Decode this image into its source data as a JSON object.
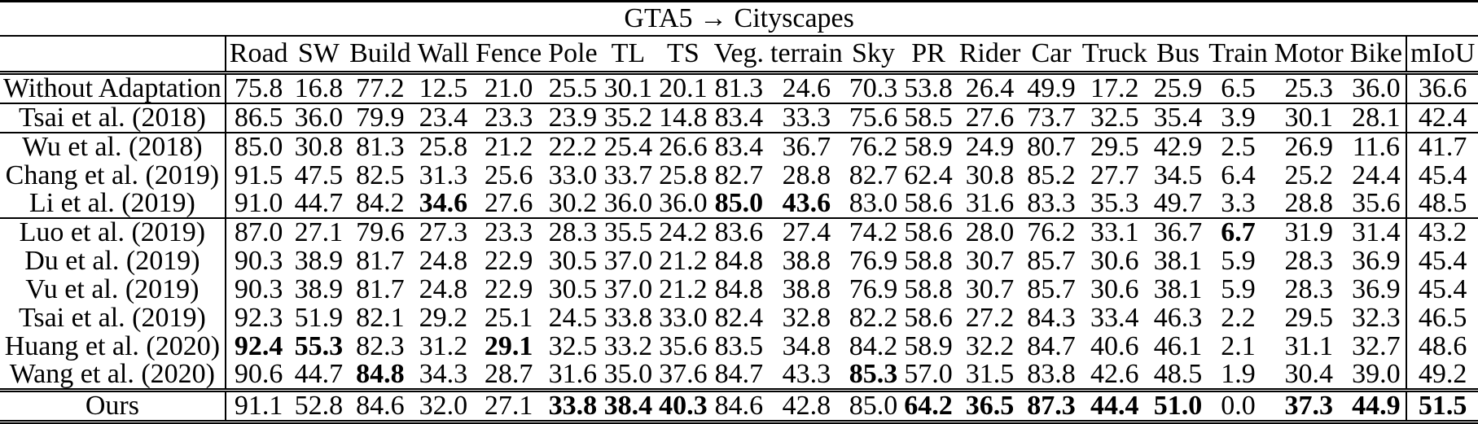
{
  "title": "GTA5 → Cityscapes",
  "columns": [
    "Road",
    "SW",
    "Build",
    "Wall",
    "Fence",
    "Pole",
    "TL",
    "TS",
    "Veg.",
    "terrain",
    "Sky",
    "PR",
    "Rider",
    "Car",
    "Truck",
    "Bus",
    "Train",
    "Motor",
    "Bike",
    "mIoU"
  ],
  "chart_data": {
    "type": "table",
    "title": "GTA5 → Cityscapes",
    "columns": [
      "Road",
      "SW",
      "Build",
      "Wall",
      "Fence",
      "Pole",
      "TL",
      "TS",
      "Veg.",
      "terrain",
      "Sky",
      "PR",
      "Rider",
      "Car",
      "Truck",
      "Bus",
      "Train",
      "Motor",
      "Bike",
      "mIoU"
    ]
  },
  "rows": [
    {
      "method": "Without Adaptation",
      "rule": "none",
      "last": false,
      "bold": [],
      "values": [
        "75.8",
        "16.8",
        "77.2",
        "12.5",
        "21.0",
        "25.5",
        "30.1",
        "20.1",
        "81.3",
        "24.6",
        "70.3",
        "53.8",
        "26.4",
        "49.9",
        "17.2",
        "25.9",
        "6.5",
        "25.3",
        "36.0",
        "36.6"
      ]
    },
    {
      "method": "Tsai et al. (2018)",
      "rule": "single",
      "last": false,
      "bold": [],
      "values": [
        "86.5",
        "36.0",
        "79.9",
        "23.4",
        "23.3",
        "23.9",
        "35.2",
        "14.8",
        "83.4",
        "33.3",
        "75.6",
        "58.5",
        "27.6",
        "73.7",
        "32.5",
        "35.4",
        "3.9",
        "30.1",
        "28.1",
        "42.4"
      ]
    },
    {
      "method": "Wu et al. (2018)",
      "rule": "single",
      "last": false,
      "bold": [],
      "values": [
        "85.0",
        "30.8",
        "81.3",
        "25.8",
        "21.2",
        "22.2",
        "25.4",
        "26.6",
        "83.4",
        "36.7",
        "76.2",
        "58.9",
        "24.9",
        "80.7",
        "29.5",
        "42.9",
        "2.5",
        "26.9",
        "11.6",
        "41.7"
      ]
    },
    {
      "method": "Chang et al. (2019)",
      "rule": "none",
      "last": false,
      "bold": [],
      "values": [
        "91.5",
        "47.5",
        "82.5",
        "31.3",
        "25.6",
        "33.0",
        "33.7",
        "25.8",
        "82.7",
        "28.8",
        "82.7",
        "62.4",
        "30.8",
        "85.2",
        "27.7",
        "34.5",
        "6.4",
        "25.2",
        "24.4",
        "45.4"
      ]
    },
    {
      "method": "Li et al. (2019)",
      "rule": "none",
      "last": false,
      "bold": [
        3,
        8,
        9
      ],
      "values": [
        "91.0",
        "44.7",
        "84.2",
        "34.6",
        "27.6",
        "30.2",
        "36.0",
        "36.0",
        "85.0",
        "43.6",
        "83.0",
        "58.6",
        "31.6",
        "83.3",
        "35.3",
        "49.7",
        "3.3",
        "28.8",
        "35.6",
        "48.5"
      ]
    },
    {
      "method": "Luo et al. (2019)",
      "rule": "single",
      "last": false,
      "bold": [
        16
      ],
      "values": [
        "87.0",
        "27.1",
        "79.6",
        "27.3",
        "23.3",
        "28.3",
        "35.5",
        "24.2",
        "83.6",
        "27.4",
        "74.2",
        "58.6",
        "28.0",
        "76.2",
        "33.1",
        "36.7",
        "6.7",
        "31.9",
        "31.4",
        "43.2"
      ]
    },
    {
      "method": "Du et al. (2019)",
      "rule": "none",
      "last": false,
      "bold": [],
      "values": [
        "90.3",
        "38.9",
        "81.7",
        "24.8",
        "22.9",
        "30.5",
        "37.0",
        "21.2",
        "84.8",
        "38.8",
        "76.9",
        "58.8",
        "30.7",
        "85.7",
        "30.6",
        "38.1",
        "5.9",
        "28.3",
        "36.9",
        "45.4"
      ]
    },
    {
      "method": "Vu et al. (2019)",
      "rule": "none",
      "last": false,
      "bold": [],
      "values": [
        "90.3",
        "38.9",
        "81.7",
        "24.8",
        "22.9",
        "30.5",
        "37.0",
        "21.2",
        "84.8",
        "38.8",
        "76.9",
        "58.8",
        "30.7",
        "85.7",
        "30.6",
        "38.1",
        "5.9",
        "28.3",
        "36.9",
        "45.4"
      ]
    },
    {
      "method": "Tsai et al. (2019)",
      "rule": "none",
      "last": false,
      "bold": [],
      "values": [
        "92.3",
        "51.9",
        "82.1",
        "29.2",
        "25.1",
        "24.5",
        "33.8",
        "33.0",
        "82.4",
        "32.8",
        "82.2",
        "58.6",
        "27.2",
        "84.3",
        "33.4",
        "46.3",
        "2.2",
        "29.5",
        "32.3",
        "46.5"
      ]
    },
    {
      "method": "Huang et al. (2020)",
      "rule": "none",
      "last": false,
      "bold": [
        0,
        1,
        4
      ],
      "values": [
        "92.4",
        "55.3",
        "82.3",
        "31.2",
        "29.1",
        "32.5",
        "33.2",
        "35.6",
        "83.5",
        "34.8",
        "84.2",
        "58.9",
        "32.2",
        "84.7",
        "40.6",
        "46.1",
        "2.1",
        "31.1",
        "32.7",
        "48.6"
      ]
    },
    {
      "method": "Wang et al. (2020)",
      "rule": "none",
      "last": false,
      "bold": [
        2,
        10
      ],
      "values": [
        "90.6",
        "44.7",
        "84.8",
        "34.3",
        "28.7",
        "31.6",
        "35.0",
        "37.6",
        "84.7",
        "43.3",
        "85.3",
        "57.0",
        "31.5",
        "83.8",
        "42.6",
        "48.5",
        "1.9",
        "30.4",
        "39.0",
        "49.2"
      ]
    },
    {
      "method": "Ours",
      "rule": "double",
      "last": true,
      "bold": [
        5,
        6,
        7,
        11,
        12,
        13,
        14,
        15,
        17,
        18,
        19
      ],
      "values": [
        "91.1",
        "52.8",
        "84.6",
        "32.0",
        "27.1",
        "33.8",
        "38.4",
        "40.3",
        "84.6",
        "42.8",
        "85.0",
        "64.2",
        "36.5",
        "87.3",
        "44.4",
        "51.0",
        "0.0",
        "37.3",
        "44.9",
        "51.5"
      ]
    }
  ]
}
